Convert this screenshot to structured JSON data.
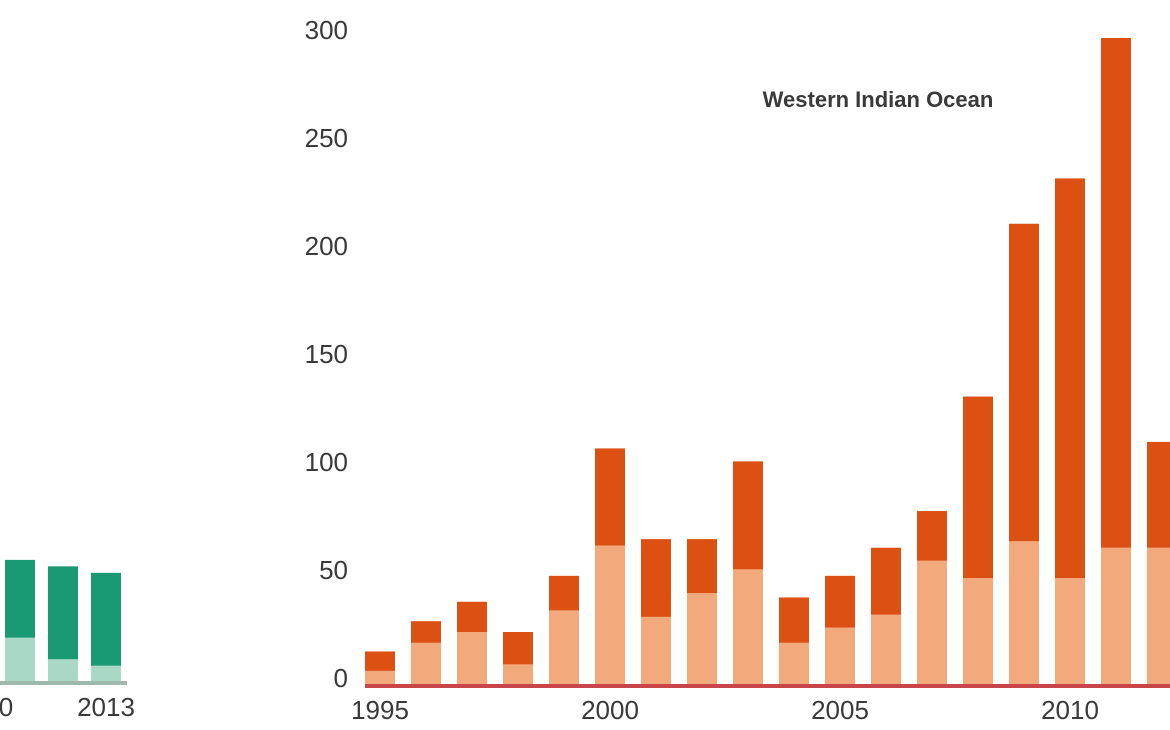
{
  "chart_data": [
    {
      "type": "stacked-bar",
      "categories": [
        "0",
        null,
        null,
        "2013"
      ],
      "series": [
        {
          "color": "#a9d8c6",
          "values": [
            null,
            21,
            11,
            8
          ]
        },
        {
          "color": "#1a9a72",
          "values": [
            null,
            36,
            43,
            43
          ]
        }
      ],
      "ylim": [
        0,
        300
      ]
    },
    {
      "type": "stacked-bar",
      "title": "Western Indian Ocean",
      "categories": [
        "1995",
        null,
        null,
        null,
        null,
        "2000",
        null,
        null,
        null,
        null,
        "2005",
        null,
        null,
        null,
        null,
        "2010",
        null,
        null
      ],
      "series": [
        {
          "color": "#f2a97c",
          "values": [
            7,
            20,
            25,
            10,
            35,
            65,
            32,
            43,
            54,
            20,
            27,
            33,
            58,
            50,
            67,
            50,
            64,
            64
          ]
        },
        {
          "color": "#dd5014",
          "values": [
            9,
            10,
            14,
            15,
            16,
            45,
            36,
            25,
            50,
            21,
            24,
            31,
            23,
            84,
            147,
            185,
            236,
            49
          ]
        }
      ],
      "ylim": [
        0,
        300
      ],
      "yticks": [
        0,
        50,
        100,
        150,
        200,
        250,
        300
      ]
    }
  ]
}
